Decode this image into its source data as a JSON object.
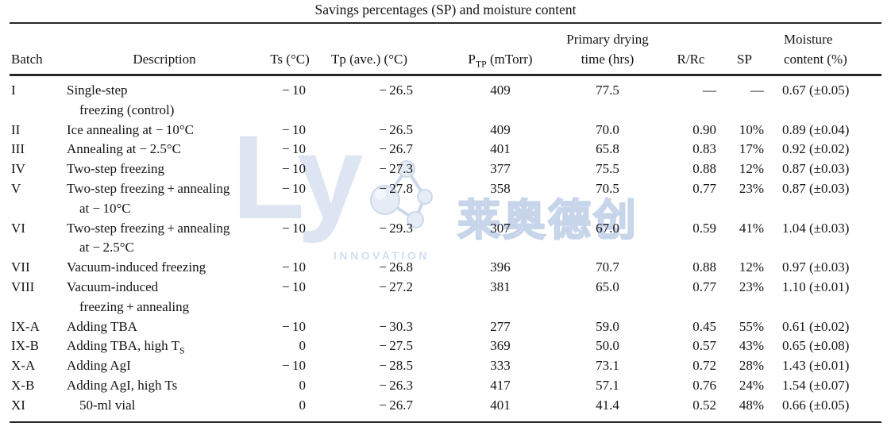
{
  "title": "Savings percentages (SP) and moisture content",
  "watermark": {
    "logo_text": "Ly",
    "subtitle": "INNOVATION",
    "cn_text": "莱奥德创",
    "logo_color": "#dde5f2",
    "outline_color": "#c7d5ea"
  },
  "table": {
    "headers": {
      "batch": "Batch",
      "description": "Description",
      "ts": "Ts (°C)",
      "tp": "Tp (ave.) (°C)",
      "ptp": [
        {
          "t": "P"
        },
        {
          "t": "TP",
          "sub": true
        },
        {
          "t": " (mTorr)"
        }
      ],
      "drying_l1": "Primary drying",
      "drying_l2": "time (hrs)",
      "rrc": "R/Rc",
      "sp": "SP",
      "moisture_l1": "Moisture",
      "moisture_l2": "content (%)"
    },
    "rows": [
      {
        "batch": "I",
        "desc": "Single-step",
        "desc2": "freezing (control)",
        "ts": "− 10",
        "tp": "− 26.5",
        "ptp": "409",
        "time": "77.5",
        "rrc": "—",
        "sp": "—",
        "moist": "0.67 (±0.05)"
      },
      {
        "batch": "II",
        "desc": "Ice annealing at − 10°C",
        "ts": "− 10",
        "tp": "− 26.5",
        "ptp": "409",
        "time": "70.0",
        "rrc": "0.90",
        "sp": "10%",
        "moist": "0.89 (±0.04)"
      },
      {
        "batch": "III",
        "desc": "Annealing at − 2.5°C",
        "ts": "− 10",
        "tp": "− 26.7",
        "ptp": "401",
        "time": "65.8",
        "rrc": "0.83",
        "sp": "17%",
        "moist": "0.92 (±0.02)"
      },
      {
        "batch": "IV",
        "desc": "Two-step freezing",
        "ts": "− 10",
        "tp": "− 27.3",
        "ptp": "377",
        "time": "75.5",
        "rrc": "0.88",
        "sp": "12%",
        "moist": "0.87 (±0.03)"
      },
      {
        "batch": "V",
        "desc": "Two-step freezing + annealing",
        "desc2": "at − 10°C",
        "ts": "− 10",
        "tp": "− 27.8",
        "ptp": "358",
        "time": "70.5",
        "rrc": "0.77",
        "sp": "23%",
        "moist": "0.87 (±0.03)"
      },
      {
        "batch": "VI",
        "desc": "Two-step freezing + annealing",
        "desc2": "at − 2.5°C",
        "ts": "− 10",
        "tp": "− 29.3",
        "ptp": "307",
        "time": "67.0",
        "rrc": "0.59",
        "sp": "41%",
        "moist": "1.04 (±0.03)"
      },
      {
        "batch": "VII",
        "desc": "Vacuum-induced freezing",
        "ts": "− 10",
        "tp": "− 26.8",
        "ptp": "396",
        "time": "70.7",
        "rrc": "0.88",
        "sp": "12%",
        "moist": "0.97 (±0.03)"
      },
      {
        "batch": "VIII",
        "desc": "Vacuum-induced",
        "desc2": "freezing + annealing",
        "ts": "− 10",
        "tp": "− 27.2",
        "ptp": "381",
        "time": "65.0",
        "rrc": "0.77",
        "sp": "23%",
        "moist": "1.10 (±0.01)"
      },
      {
        "batch": "IX-A",
        "desc": "Adding TBA",
        "ts": "− 10",
        "tp": "− 30.3",
        "ptp": "277",
        "time": "59.0",
        "rrc": "0.45",
        "sp": "55%",
        "moist": "0.61 (±0.02)"
      },
      {
        "batch": "IX-B",
        "desc": [
          {
            "t": "Adding TBA, high T"
          },
          {
            "t": "S",
            "sub": true
          }
        ],
        "ts": "0",
        "tp": "− 27.5",
        "ptp": "369",
        "time": "50.0",
        "rrc": "0.57",
        "sp": "43%",
        "moist": "0.65 (±0.08)"
      },
      {
        "batch": "X-A",
        "desc": "Adding AgI",
        "ts": "− 10",
        "tp": "− 28.5",
        "ptp": "333",
        "time": "73.1",
        "rrc": "0.72",
        "sp": "28%",
        "moist": "1.43 (±0.01)"
      },
      {
        "batch": "X-B",
        "desc": "Adding AgI, high Ts",
        "ts": "0",
        "tp": "− 26.3",
        "ptp": "417",
        "time": "57.1",
        "rrc": "0.76",
        "sp": "24%",
        "moist": "1.54 (±0.07)"
      },
      {
        "batch": "XI",
        "desc": "50-ml vial",
        "desc_indent": true,
        "ts": "0",
        "tp": "− 26.7",
        "ptp": "401",
        "time": "41.4",
        "rrc": "0.52",
        "sp": "48%",
        "moist": "0.66 (±0.05)"
      }
    ]
  }
}
